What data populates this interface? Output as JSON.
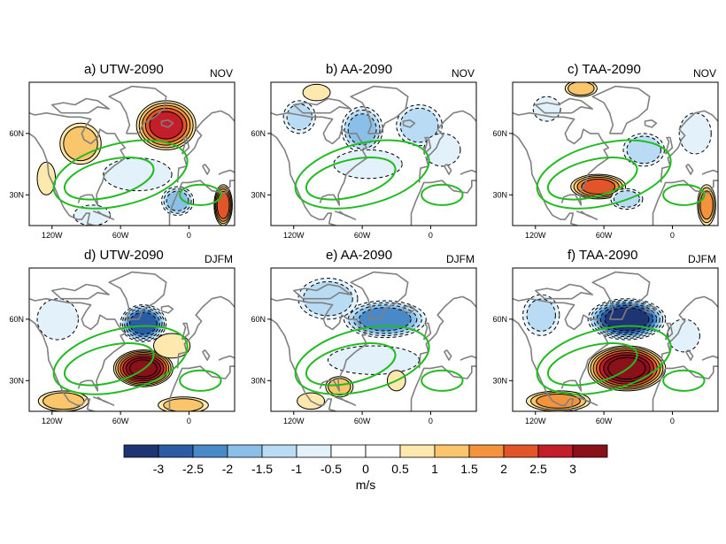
{
  "chart_data": {
    "type": "heatmap",
    "units": "m/s",
    "panels": [
      {
        "id": "a",
        "title": "a) UTW-2090",
        "season": "NOV",
        "features": [
          {
            "lon": -20,
            "lat": 64,
            "v": 2.6,
            "rx": 26,
            "ry": 12
          },
          {
            "lon": -95,
            "lat": 55,
            "v": 1.3,
            "rx": 18,
            "ry": 10
          },
          {
            "lon": -125,
            "lat": 38,
            "v": 0.8,
            "rx": 8,
            "ry": 8
          },
          {
            "lon": -45,
            "lat": 40,
            "v": -0.7,
            "rx": 30,
            "ry": 8
          },
          {
            "lon": -10,
            "lat": 27,
            "v": -1.6,
            "rx": 14,
            "ry": 7
          },
          {
            "lon": 30,
            "lat": 25,
            "v": 2.4,
            "rx": 8,
            "ry": 10
          },
          {
            "lon": -85,
            "lat": 20,
            "v": -0.9,
            "rx": 16,
            "ry": 5
          }
        ]
      },
      {
        "id": "b",
        "title": "b) AA-2090",
        "season": "NOV",
        "features": [
          {
            "lon": -60,
            "lat": 62,
            "v": -1.6,
            "rx": 18,
            "ry": 11
          },
          {
            "lon": -115,
            "lat": 68,
            "v": -1.0,
            "rx": 14,
            "ry": 8
          },
          {
            "lon": -10,
            "lat": 64,
            "v": -1.3,
            "rx": 20,
            "ry": 10
          },
          {
            "lon": -55,
            "lat": 45,
            "v": -0.7,
            "rx": 30,
            "ry": 7
          },
          {
            "lon": -100,
            "lat": 80,
            "v": 0.8,
            "rx": 12,
            "ry": 4
          },
          {
            "lon": 10,
            "lat": 52,
            "v": -0.7,
            "rx": 16,
            "ry": 8
          }
        ]
      },
      {
        "id": "c",
        "title": "c) TAA-2090",
        "season": "NOV",
        "features": [
          {
            "lon": -65,
            "lat": 34,
            "v": 2.1,
            "rx": 24,
            "ry": 6
          },
          {
            "lon": -25,
            "lat": 52,
            "v": -1.3,
            "rx": 18,
            "ry": 8
          },
          {
            "lon": 20,
            "lat": 60,
            "v": -0.9,
            "rx": 14,
            "ry": 10
          },
          {
            "lon": -40,
            "lat": 28,
            "v": -1.1,
            "rx": 14,
            "ry": 5
          },
          {
            "lon": -110,
            "lat": 72,
            "v": -0.8,
            "rx": 12,
            "ry": 6
          },
          {
            "lon": 30,
            "lat": 25,
            "v": 1.6,
            "rx": 8,
            "ry": 10
          },
          {
            "lon": -80,
            "lat": 82,
            "v": 1.2,
            "rx": 14,
            "ry": 4
          }
        ]
      },
      {
        "id": "d",
        "title": "d) UTW-2090",
        "season": "DJFM",
        "features": [
          {
            "lon": -40,
            "lat": 36,
            "v": 3.5,
            "rx": 26,
            "ry": 9
          },
          {
            "lon": -40,
            "lat": 58,
            "v": -2.8,
            "rx": 20,
            "ry": 9
          },
          {
            "lon": -15,
            "lat": 47,
            "v": 0.9,
            "rx": 16,
            "ry": 6
          },
          {
            "lon": -115,
            "lat": 60,
            "v": -0.8,
            "rx": 18,
            "ry": 10
          },
          {
            "lon": -110,
            "lat": 20,
            "v": 1.2,
            "rx": 22,
            "ry": 5
          },
          {
            "lon": -5,
            "lat": 18,
            "v": 1.0,
            "rx": 22,
            "ry": 4
          }
        ]
      },
      {
        "id": "e",
        "title": "e) AA-2090",
        "season": "DJFM",
        "features": [
          {
            "lon": -40,
            "lat": 60,
            "v": -2.2,
            "rx": 36,
            "ry": 9
          },
          {
            "lon": -90,
            "lat": 70,
            "v": -1.3,
            "rx": 26,
            "ry": 10
          },
          {
            "lon": -50,
            "lat": 40,
            "v": -0.9,
            "rx": 40,
            "ry": 7
          },
          {
            "lon": -80,
            "lat": 27,
            "v": 1.2,
            "rx": 12,
            "ry": 5
          },
          {
            "lon": -30,
            "lat": 30,
            "v": 0.8,
            "rx": 8,
            "ry": 5
          },
          {
            "lon": -105,
            "lat": 20,
            "v": 0.8,
            "rx": 12,
            "ry": 4
          }
        ]
      },
      {
        "id": "f",
        "title": "f) TAA-2090",
        "season": "DJFM",
        "features": [
          {
            "lon": -40,
            "lat": 36,
            "v": 3.6,
            "rx": 34,
            "ry": 11
          },
          {
            "lon": -40,
            "lat": 60,
            "v": -3.4,
            "rx": 34,
            "ry": 10
          },
          {
            "lon": -115,
            "lat": 62,
            "v": -1.0,
            "rx": 16,
            "ry": 10
          },
          {
            "lon": -100,
            "lat": 20,
            "v": 1.6,
            "rx": 28,
            "ry": 5
          },
          {
            "lon": 10,
            "lat": 52,
            "v": -0.8,
            "rx": 14,
            "ry": 8
          }
        ]
      }
    ],
    "x_ticks": [
      "120W",
      "60W",
      "0"
    ],
    "y_ticks": [
      "60N",
      "30N"
    ],
    "colorbar": {
      "labels": [
        "-3",
        "-2.5",
        "-2",
        "-1.5",
        "-1",
        "-0.5",
        "0",
        "0.5",
        "1",
        "1.5",
        "2",
        "2.5",
        "3"
      ],
      "levels": [
        -3,
        -2.5,
        -2,
        -1.5,
        -1,
        -0.5,
        0,
        0.5,
        1,
        1.5,
        2,
        2.5,
        3
      ],
      "colors": [
        "#1f3573",
        "#2a5ba3",
        "#4a89c8",
        "#8ac0e8",
        "#b9dcf4",
        "#e3f1fb",
        "#ffffff",
        "#ffffff",
        "#fde9ad",
        "#fbc66b",
        "#f5933d",
        "#e2542a",
        "#c41e2a",
        "#8a1019"
      ],
      "units": "m/s"
    },
    "lon_range": [
      -140,
      40
    ],
    "lat_range": [
      15,
      85
    ],
    "contour_color": "#000000",
    "jet_contour_color": "#22bb22",
    "coast_color": "#808080"
  }
}
